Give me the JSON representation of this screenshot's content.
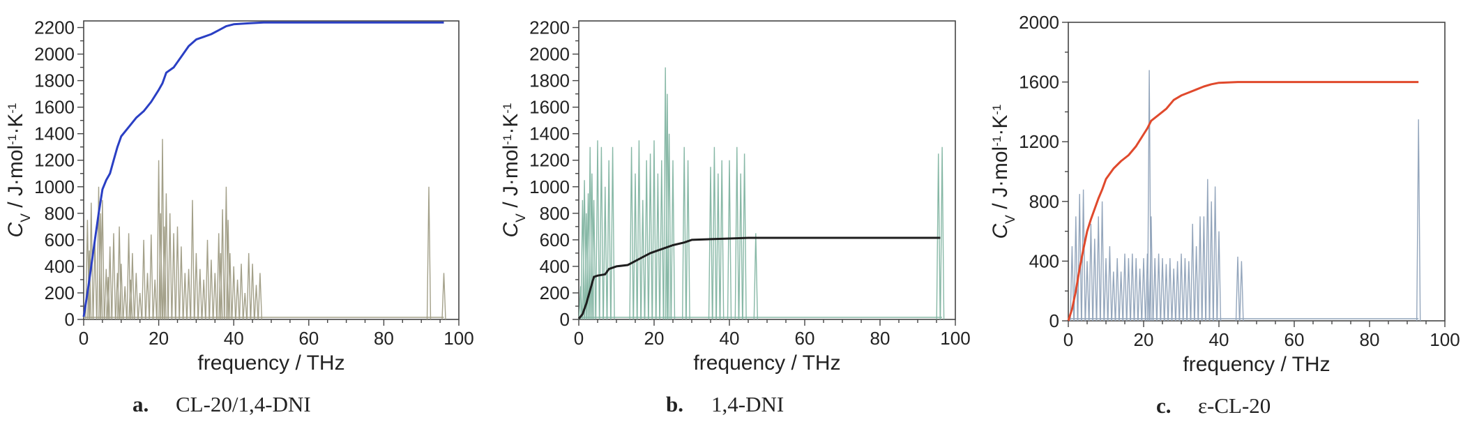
{
  "chart_data": [
    {
      "type": "line",
      "panel_label": "a.",
      "caption": "CL-20/1,4-DNI",
      "xlabel": "frequency / THz",
      "ylabel_symbol": "C",
      "ylabel_sub": "V",
      "ylabel_units": " / J·mol",
      "ylabel_sup1": "-1",
      "ylabel_k": "·K",
      "ylabel_sup2": "-1",
      "xlim": [
        0,
        100
      ],
      "ylim": [
        0,
        2250
      ],
      "xticks": [
        0,
        20,
        40,
        60,
        80,
        100
      ],
      "yticks": [
        0,
        200,
        400,
        600,
        800,
        1000,
        1200,
        1400,
        1600,
        1800,
        2000,
        2200
      ],
      "grid": false,
      "series": [
        {
          "kind": "cumulative-line",
          "color": "#2a3fc4",
          "x": [
            0,
            1,
            2,
            3,
            4,
            5,
            6,
            7,
            8,
            9,
            10,
            12,
            14,
            16,
            18,
            20,
            21,
            22,
            24,
            26,
            28,
            30,
            32,
            34,
            36,
            38,
            40,
            44,
            48,
            60,
            80,
            96
          ],
          "y": [
            20,
            200,
            400,
            600,
            800,
            980,
            1050,
            1100,
            1200,
            1300,
            1380,
            1450,
            1520,
            1570,
            1640,
            1730,
            1780,
            1860,
            1900,
            1980,
            2060,
            2110,
            2130,
            2150,
            2180,
            2210,
            2225,
            2232,
            2238,
            2238,
            2238,
            2238
          ]
        },
        {
          "kind": "spectrum",
          "color": "#a3a089",
          "x": [
            1,
            1.5,
            2,
            3,
            4,
            4.5,
            5,
            6,
            6.5,
            7,
            8,
            9,
            9.5,
            10,
            11,
            12,
            12.5,
            13,
            14,
            15,
            16,
            17,
            18,
            19,
            20,
            20.5,
            21,
            21.5,
            22,
            23,
            24,
            25,
            26,
            27,
            28,
            29,
            30,
            31,
            32,
            33,
            34,
            35,
            36,
            36.5,
            37,
            38,
            38.5,
            39,
            40,
            41,
            42,
            43,
            44,
            45,
            46,
            47,
            92,
            96
          ],
          "y": [
            750,
            520,
            880,
            600,
            1000,
            800,
            900,
            380,
            320,
            550,
            650,
            350,
            700,
            420,
            250,
            650,
            300,
            500,
            350,
            200,
            600,
            350,
            640,
            300,
            1200,
            800,
            1360,
            700,
            950,
            800,
            650,
            700,
            550,
            350,
            380,
            900,
            500,
            380,
            300,
            600,
            450,
            350,
            650,
            500,
            830,
            1000,
            750,
            500,
            400,
            300,
            420,
            200,
            500,
            420,
            260,
            350,
            1000,
            350
          ]
        }
      ]
    },
    {
      "type": "line",
      "panel_label": "b.",
      "caption": "1,4-DNI",
      "xlabel": "frequency / THz",
      "ylabel_symbol": "C",
      "ylabel_sub": "V",
      "ylabel_units": " / J·mol",
      "ylabel_sup1": "-1",
      "ylabel_k": "·K",
      "ylabel_sup2": "-1",
      "xlim": [
        0,
        100
      ],
      "ylim": [
        0,
        2250
      ],
      "xticks": [
        0,
        20,
        40,
        60,
        80,
        100
      ],
      "yticks": [
        0,
        200,
        400,
        600,
        800,
        1000,
        1200,
        1400,
        1600,
        1800,
        2000,
        2200
      ],
      "grid": false,
      "series": [
        {
          "kind": "cumulative-line",
          "color": "#1e1e1e",
          "x": [
            0,
            1,
            2,
            3,
            4,
            5,
            7,
            8,
            10,
            13,
            15,
            17,
            19,
            21,
            23,
            25,
            28,
            30,
            35,
            40,
            45,
            50,
            60,
            80,
            96
          ],
          "y": [
            5,
            40,
            120,
            220,
            320,
            330,
            340,
            380,
            400,
            410,
            440,
            470,
            500,
            520,
            540,
            560,
            580,
            600,
            605,
            610,
            615,
            615,
            615,
            615,
            615
          ]
        },
        {
          "kind": "spectrum",
          "color": "#87b8a6",
          "x": [
            0.5,
            1,
            1.5,
            2,
            2.5,
            3,
            3.5,
            4,
            5,
            6,
            7,
            8,
            9,
            14,
            15,
            16,
            17,
            18,
            19,
            20,
            21,
            22,
            23,
            23.5,
            24,
            25,
            28,
            29,
            35,
            36,
            37,
            38,
            40,
            42,
            43,
            44,
            47,
            95.5,
            96.5
          ],
          "y": [
            250,
            900,
            1050,
            800,
            950,
            1300,
            1100,
            900,
            1350,
            1300,
            1000,
            1200,
            1300,
            1300,
            1100,
            1350,
            900,
            1200,
            1250,
            1350,
            1100,
            1200,
            1900,
            1700,
            1400,
            1200,
            1300,
            1200,
            1150,
            1300,
            1100,
            1200,
            1200,
            1300,
            1100,
            1250,
            650,
            1250,
            1300
          ]
        }
      ]
    },
    {
      "type": "line",
      "panel_label": "c.",
      "caption": "ε-CL-20",
      "xlabel": "frequency / THz",
      "ylabel_symbol": "C",
      "ylabel_sub": "V",
      "ylabel_units": " / J·mol",
      "ylabel_sup1": "-1",
      "ylabel_k": "·K",
      "ylabel_sup2": "-1",
      "xlim": [
        0,
        100
      ],
      "ylim": [
        0,
        2000
      ],
      "xticks": [
        0,
        20,
        40,
        60,
        80,
        100
      ],
      "yticks": [
        0,
        400,
        800,
        1200,
        1600,
        2000
      ],
      "grid": false,
      "series": [
        {
          "kind": "cumulative-line",
          "color": "#e0492c",
          "x": [
            0,
            1,
            2,
            3,
            4,
            5,
            6,
            7,
            8,
            9,
            10,
            12,
            14,
            16,
            18,
            20,
            21,
            22,
            24,
            26,
            28,
            30,
            32,
            34,
            36,
            38,
            40,
            45,
            50,
            70,
            93
          ],
          "y": [
            0,
            80,
            200,
            350,
            480,
            600,
            680,
            750,
            820,
            880,
            950,
            1020,
            1070,
            1110,
            1170,
            1250,
            1290,
            1340,
            1380,
            1420,
            1480,
            1510,
            1530,
            1550,
            1570,
            1585,
            1595,
            1600,
            1600,
            1600,
            1600
          ]
        },
        {
          "kind": "spectrum",
          "color": "#94a6bc",
          "x": [
            1,
            2,
            3,
            4,
            5,
            6,
            7,
            8,
            9,
            10,
            11,
            12,
            13,
            14,
            15,
            16,
            17,
            18,
            19,
            20,
            21,
            21.5,
            22,
            23,
            24,
            25,
            26,
            27,
            28,
            29,
            30,
            31,
            32,
            33,
            34,
            35,
            36,
            37,
            38,
            39,
            40,
            45,
            46,
            93
          ],
          "y": [
            500,
            700,
            850,
            880,
            400,
            650,
            550,
            700,
            800,
            420,
            500,
            330,
            420,
            330,
            450,
            420,
            450,
            420,
            350,
            420,
            450,
            1680,
            700,
            420,
            450,
            420,
            380,
            420,
            350,
            400,
            450,
            420,
            400,
            650,
            500,
            700,
            700,
            950,
            800,
            900,
            600,
            430,
            400,
            1350
          ]
        }
      ]
    }
  ]
}
